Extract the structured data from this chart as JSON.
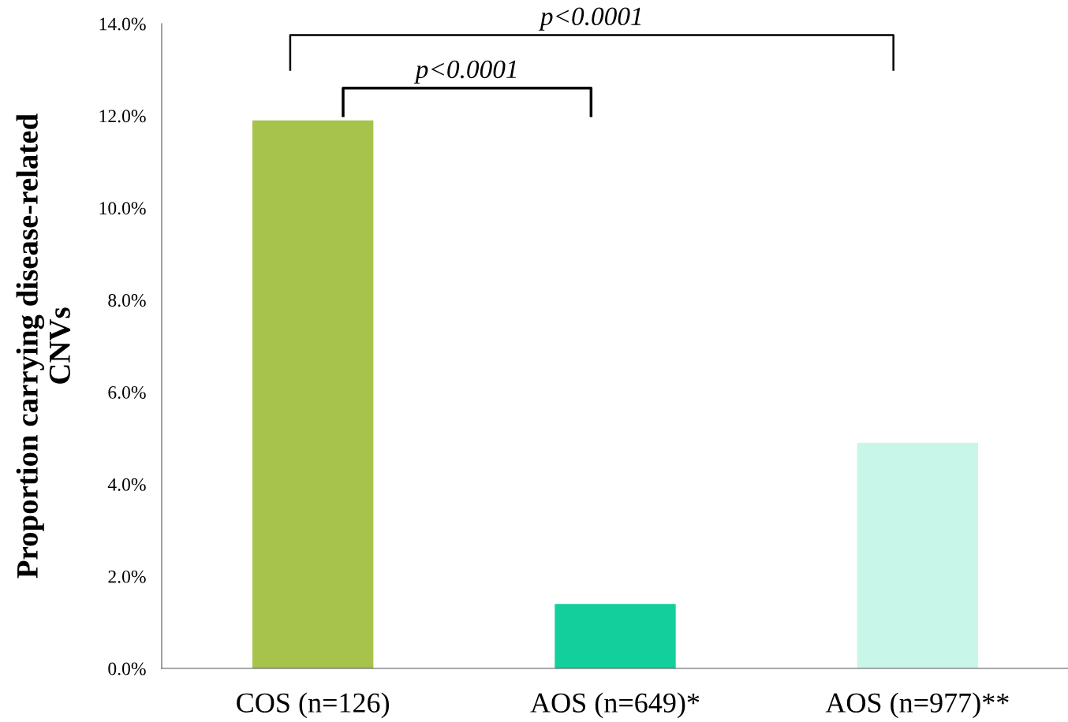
{
  "chart_data": {
    "type": "bar",
    "categories": [
      "COS (n=126)",
      "AOS (n=649)*",
      "AOS (n=977)**"
    ],
    "values": [
      11.9,
      1.4,
      4.9
    ],
    "colors": [
      "#a7c34b",
      "#13cf9c",
      "#c8f7ea"
    ],
    "ylabel": "Proportion carrying disease-related\nCNVs",
    "ylim": [
      0,
      14
    ],
    "yticks": [
      {
        "value": 0,
        "label": "0.0%"
      },
      {
        "value": 2,
        "label": "2.0%"
      },
      {
        "value": 4,
        "label": "4.0%"
      },
      {
        "value": 6,
        "label": "6.0%"
      },
      {
        "value": 8,
        "label": "8.0%"
      },
      {
        "value": 10,
        "label": "10.0%"
      },
      {
        "value": 12,
        "label": "12.0%"
      },
      {
        "value": 14,
        "label": "14.0%"
      }
    ],
    "annotations": [
      "p<0.0001",
      "p<0.0001"
    ],
    "grid": false,
    "legend": false
  }
}
